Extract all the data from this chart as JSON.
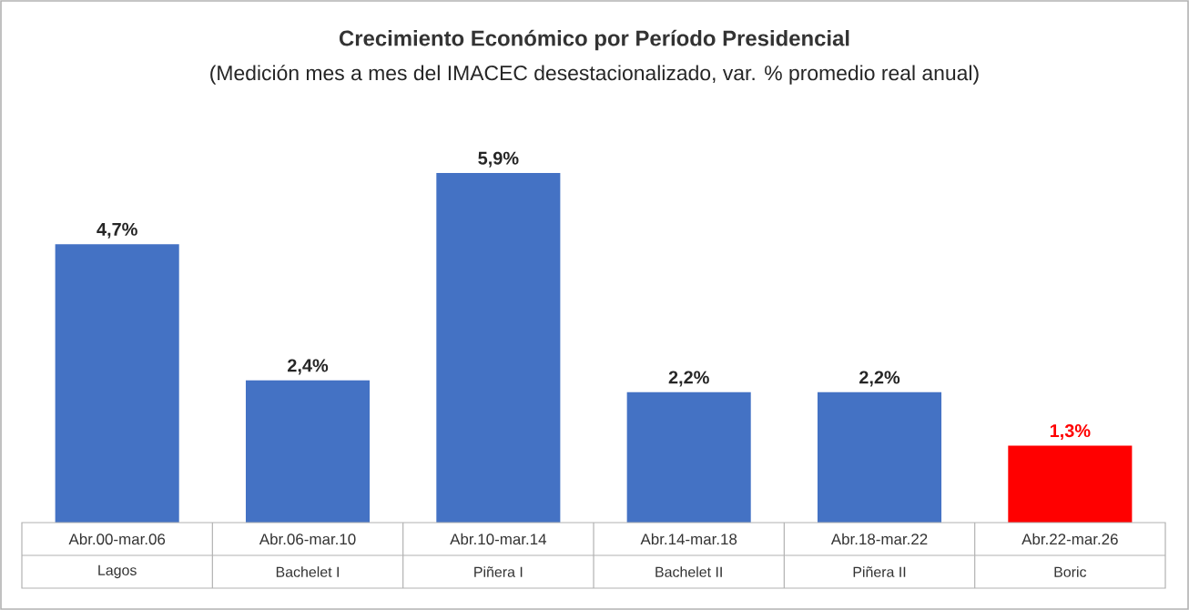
{
  "chart_data": {
    "type": "bar",
    "title": "Crecimiento Económico por Período Presidencial",
    "subtitle": "(Medición mes a mes del IMACEC desestacionalizado, var. % promedio real anual)",
    "categories": [
      "Abr.00-mar.06",
      "Abr.06-mar.10",
      "Abr.10-mar.14",
      "Abr.14-mar.18",
      "Abr.18-mar.22",
      "Abr.22-mar.26"
    ],
    "annotations": [
      "Lagos",
      "Bachelet I",
      "Piñera I",
      "Bachelet II",
      "Piñera II",
      "Boric"
    ],
    "values": [
      4.7,
      2.4,
      5.9,
      2.2,
      2.2,
      1.3
    ],
    "value_labels": [
      "4,7%",
      "2,4%",
      "5,9%",
      "2,2%",
      "2,2%",
      "1,3%"
    ],
    "colors": [
      "#4472c4",
      "#4472c4",
      "#4472c4",
      "#4472c4",
      "#4472c4",
      "#ff0000"
    ]
  }
}
